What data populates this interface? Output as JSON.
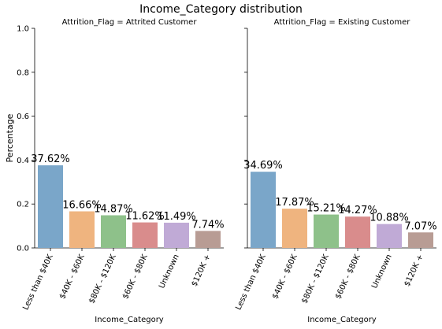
{
  "title": "Income_Category distribution",
  "chart_data": {
    "type": "bar",
    "title": "Income_Category distribution",
    "ylabel": "Percentage",
    "xlabel": "Income_Category",
    "ylim": [
      0,
      1.0
    ],
    "yticks": [
      "0.0",
      "0.2",
      "0.4",
      "0.6",
      "0.8",
      "1.0"
    ],
    "categories": [
      "Less than $40K",
      "$40K - $60K",
      "$80K - $120K",
      "$60K - $80K",
      "Unknown",
      "$120K +"
    ],
    "colors": [
      "#7aa6c9",
      "#efb47f",
      "#8ec18a",
      "#d98c8c",
      "#c0aad6",
      "#b89c94"
    ],
    "panels": [
      {
        "title": "Attrition_Flag = Attrited Customer",
        "values": [
          0.3762,
          0.1666,
          0.1487,
          0.1162,
          0.1149,
          0.0774
        ],
        "labels": [
          "37.62%",
          "16.66%",
          "14.87%",
          "11.62%",
          "11.49%",
          "7.74%"
        ]
      },
      {
        "title": "Attrition_Flag = Existing Customer",
        "values": [
          0.3469,
          0.1787,
          0.1521,
          0.1427,
          0.1088,
          0.0707
        ],
        "labels": [
          "34.69%",
          "17.87%",
          "15.21%",
          "14.27%",
          "10.88%",
          "7.07%"
        ]
      }
    ]
  }
}
